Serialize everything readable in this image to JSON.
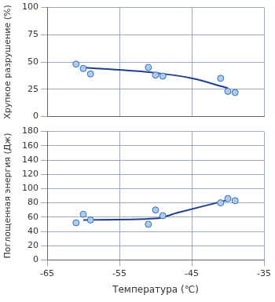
{
  "chart_data": [
    {
      "type": "scatter",
      "y_label": "Хрупкое разрушение (%)",
      "xlim": [
        -65,
        -35
      ],
      "xticks": [
        -65,
        -55,
        -45,
        -35
      ],
      "ylim": [
        0,
        100
      ],
      "yticks": [
        0,
        25,
        50,
        75,
        100
      ],
      "grid": true,
      "tick_labels": "y",
      "series": [
        {
          "type": "scatter",
          "marker": "circle",
          "color": "#a9ccf0",
          "x": [
            -61,
            -60,
            -59,
            -51,
            -50,
            -49,
            -41,
            -40,
            -39
          ],
          "values": [
            48,
            44,
            39,
            45,
            38,
            37,
            35,
            23,
            22
          ]
        },
        {
          "type": "line",
          "line_style": "solid",
          "color": "#1f3f8f",
          "x": [
            -60,
            -50,
            -45,
            -40
          ],
          "values": [
            45,
            40,
            35,
            26
          ]
        }
      ]
    },
    {
      "type": "scatter",
      "x_label": "Температура (℃)",
      "y_label": "Поглощенная энергия (Дж)",
      "xlim": [
        -65,
        -35
      ],
      "xticks": [
        -65,
        -55,
        -45,
        -35
      ],
      "ylim": [
        0,
        180
      ],
      "yticks": [
        0,
        20,
        40,
        60,
        80,
        100,
        120,
        140,
        160,
        180
      ],
      "grid": true,
      "series": [
        {
          "type": "scatter",
          "marker": "circle",
          "color": "#a9ccf0",
          "x": [
            -61,
            -60,
            -59,
            -51,
            -50,
            -49,
            -41,
            -40,
            -39
          ],
          "values": [
            52,
            64,
            56,
            50,
            70,
            62,
            80,
            86,
            83
          ]
        },
        {
          "type": "line",
          "line_style": "solid",
          "color": "#1f3f8f",
          "x": [
            -60,
            -50,
            -47,
            -40
          ],
          "values": [
            56,
            58,
            66,
            84
          ]
        }
      ]
    }
  ]
}
